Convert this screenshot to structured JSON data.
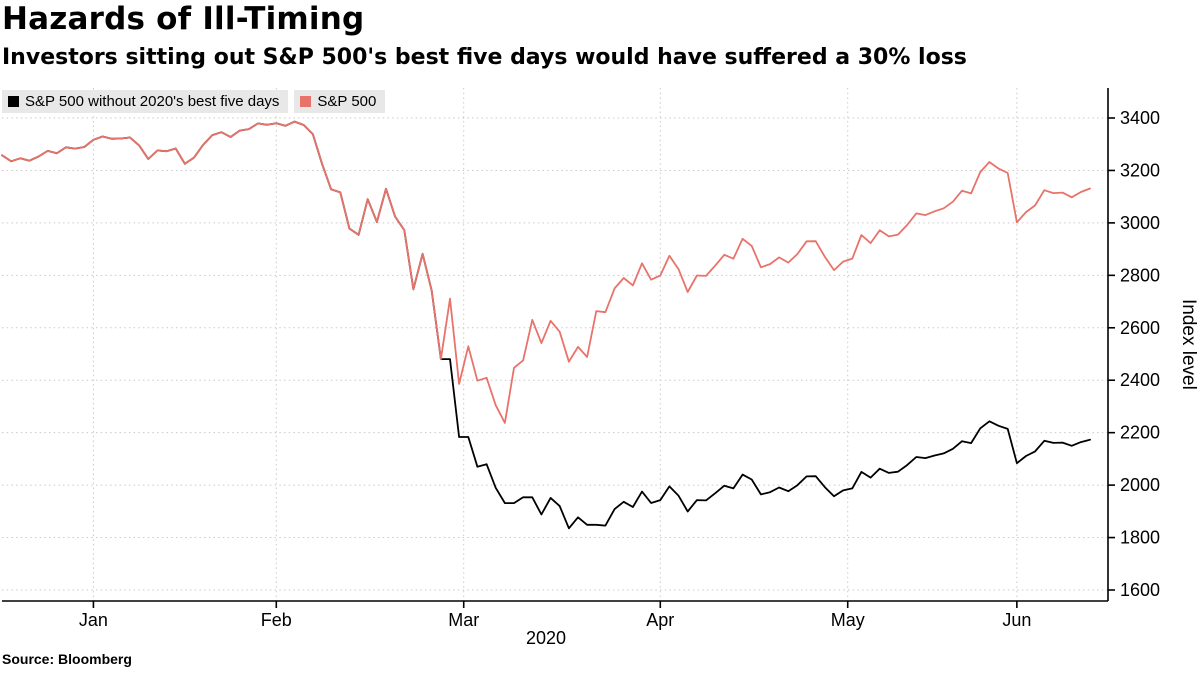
{
  "header": {
    "title": "Hazards of Ill-Timing",
    "subtitle": "Investors sitting out S&P 500's best five days would have suffered a 30% loss"
  },
  "legend": [
    {
      "label": "S&P 500 without 2020's best five days",
      "color": "#000000"
    },
    {
      "label": "S&P 500",
      "color": "#e8736b"
    }
  ],
  "source": "Source: Bloomberg",
  "chart_data": {
    "type": "line",
    "title": "Hazards of Ill-Timing",
    "subtitle": "Investors sitting out S&P 500's best five days would have suffered a 30% loss",
    "xlabel": "2020",
    "ylabel": "Index level",
    "ylim": [
      1600,
      3400
    ],
    "yticks": [
      1600,
      1800,
      2000,
      2200,
      2400,
      2600,
      2800,
      3000,
      3200,
      3400
    ],
    "x_tick_labels": [
      "Jan",
      "Feb",
      "Mar",
      "Apr",
      "May",
      "Jun"
    ],
    "grid": true,
    "legend_position": "top-left",
    "dates": [
      "2020-01-02",
      "2020-01-03",
      "2020-01-06",
      "2020-01-07",
      "2020-01-08",
      "2020-01-09",
      "2020-01-10",
      "2020-01-13",
      "2020-01-14",
      "2020-01-15",
      "2020-01-16",
      "2020-01-17",
      "2020-01-21",
      "2020-01-22",
      "2020-01-23",
      "2020-01-24",
      "2020-01-27",
      "2020-01-28",
      "2020-01-29",
      "2020-01-30",
      "2020-01-31",
      "2020-02-03",
      "2020-02-04",
      "2020-02-05",
      "2020-02-06",
      "2020-02-07",
      "2020-02-10",
      "2020-02-11",
      "2020-02-12",
      "2020-02-13",
      "2020-02-14",
      "2020-02-18",
      "2020-02-19",
      "2020-02-20",
      "2020-02-21",
      "2020-02-24",
      "2020-02-25",
      "2020-02-26",
      "2020-02-27",
      "2020-02-28",
      "2020-03-02",
      "2020-03-03",
      "2020-03-04",
      "2020-03-05",
      "2020-03-06",
      "2020-03-09",
      "2020-03-10",
      "2020-03-11",
      "2020-03-12",
      "2020-03-13",
      "2020-03-16",
      "2020-03-17",
      "2020-03-18",
      "2020-03-19",
      "2020-03-20",
      "2020-03-23",
      "2020-03-24",
      "2020-03-25",
      "2020-03-26",
      "2020-03-27",
      "2020-03-30",
      "2020-03-31",
      "2020-04-01",
      "2020-04-02",
      "2020-04-03",
      "2020-04-06",
      "2020-04-07",
      "2020-04-08",
      "2020-04-09",
      "2020-04-13",
      "2020-04-14",
      "2020-04-15",
      "2020-04-16",
      "2020-04-17",
      "2020-04-20",
      "2020-04-21",
      "2020-04-22",
      "2020-04-23",
      "2020-04-24",
      "2020-04-27",
      "2020-04-28",
      "2020-04-29",
      "2020-04-30",
      "2020-05-01",
      "2020-05-04",
      "2020-05-05",
      "2020-05-06",
      "2020-05-07",
      "2020-05-08",
      "2020-05-11",
      "2020-05-12",
      "2020-05-13",
      "2020-05-14",
      "2020-05-15",
      "2020-05-18",
      "2020-05-19",
      "2020-05-20",
      "2020-05-21",
      "2020-05-22",
      "2020-05-26",
      "2020-05-27",
      "2020-05-28",
      "2020-05-29",
      "2020-06-01",
      "2020-06-02",
      "2020-06-03",
      "2020-06-04",
      "2020-06-05",
      "2020-06-08",
      "2020-06-09",
      "2020-06-10",
      "2020-06-11",
      "2020-06-12",
      "2020-06-15",
      "2020-06-16",
      "2020-06-17",
      "2020-06-18",
      "2020-06-19",
      "2020-06-22",
      "2020-06-23"
    ],
    "series": [
      {
        "id": "sp500-without-best-five-days",
        "name": "S&P 500 without 2020's best five days",
        "color": "#000000",
        "values": [
          3257.85,
          3234.85,
          3246.28,
          3237.18,
          3253.05,
          3274.7,
          3265.35,
          3288.13,
          3283.15,
          3289.29,
          3316.81,
          3329.62,
          3320.79,
          3321.75,
          3325.54,
          3295.47,
          3243.63,
          3276.24,
          3273.4,
          3283.66,
          3225.52,
          3248.92,
          3297.59,
          3334.69,
          3345.78,
          3327.71,
          3352.09,
          3357.75,
          3379.45,
          3373.94,
          3380.16,
          3370.29,
          3386.15,
          3373.23,
          3337.75,
          3225.89,
          3128.21,
          3116.39,
          2978.76,
          2954.22,
          3090.23,
          3003.37,
          3130.12,
          3023.94,
          2972.37,
          2746.56,
          2882.23,
          2741.38,
          2480.64,
          2480.6,
          2183.4,
          2183.4,
          2070.2,
          2079.9,
          1989.7,
          1931.4,
          1931.4,
          1953.7,
          1953.7,
          1887.9,
          1951.2,
          1920,
          1835.2,
          1877.1,
          1848.7,
          1848.7,
          1845.7,
          1908.6,
          1936.2,
          1916.7,
          1975.3,
          1931.8,
          1943,
          1995.1,
          1959.4,
          1899.3,
          1942.9,
          1941.8,
          1968.8,
          1997.8,
          1987.3,
          2040.1,
          2021.3,
          1964.6,
          1972.9,
          1990.8,
          1976.9,
          1999.6,
          2033.4,
          2033.8,
          1992,
          1957.2,
          1979.8,
          1987.6,
          2050.2,
          2028.7,
          2062.5,
          2046.5,
          2051.3,
          2076.5,
          2107.3,
          2102.9,
          2113,
          2120.9,
          2138.3,
          2167.5,
          2160.2,
          2216.8,
          2243.5,
          2226,
          2214.2,
          2083.7,
          2110.9,
          2128.4,
          2168.8,
          2161,
          2162.3,
          2150.1,
          2164,
          2173.3
        ]
      },
      {
        "id": "sp500",
        "name": "S&P 500",
        "color": "#e8736b",
        "values": [
          3257.85,
          3234.85,
          3246.28,
          3237.18,
          3253.05,
          3274.7,
          3265.35,
          3288.13,
          3283.15,
          3289.29,
          3316.81,
          3329.62,
          3320.79,
          3321.75,
          3325.54,
          3295.47,
          3243.63,
          3276.24,
          3273.4,
          3283.66,
          3225.52,
          3248.92,
          3297.59,
          3334.69,
          3345.78,
          3327.71,
          3352.09,
          3357.75,
          3379.45,
          3373.94,
          3380.16,
          3370.29,
          3386.15,
          3373.23,
          3337.75,
          3225.89,
          3128.21,
          3116.39,
          2978.76,
          2954.22,
          3090.23,
          3003.37,
          3130.12,
          3023.94,
          2972.37,
          2746.56,
          2882.23,
          2741.38,
          2480.64,
          2711.02,
          2386.13,
          2529.19,
          2398.1,
          2409.39,
          2304.92,
          2237.4,
          2447.33,
          2475.56,
          2630.07,
          2541.47,
          2626.65,
          2584.59,
          2470.5,
          2526.9,
          2488.65,
          2663.68,
          2659.41,
          2749.98,
          2789.82,
          2761.63,
          2846.06,
          2783.36,
          2799.55,
          2874.56,
          2823.16,
          2736.56,
          2799.31,
          2797.8,
          2836.74,
          2878.48,
          2863.39,
          2939.51,
          2912.43,
          2830.71,
          2842.74,
          2868.44,
          2848.42,
          2881.19,
          2929.8,
          2930.32,
          2870.12,
          2820,
          2852.5,
          2863.7,
          2953.91,
          2922.94,
          2971.61,
          2948.51,
          2955.45,
          2991.77,
          3036.13,
          3029.73,
          3044.31,
          3055.73,
          3080.82,
          3122.87,
          3112.35,
          3193.93,
          3232.39,
          3207.18,
          3190.14,
          3002.1,
          3041.31,
          3066.59,
          3124.74,
          3113.49,
          3115.34,
          3097.74,
          3117.86,
          3131.29
        ]
      }
    ]
  }
}
